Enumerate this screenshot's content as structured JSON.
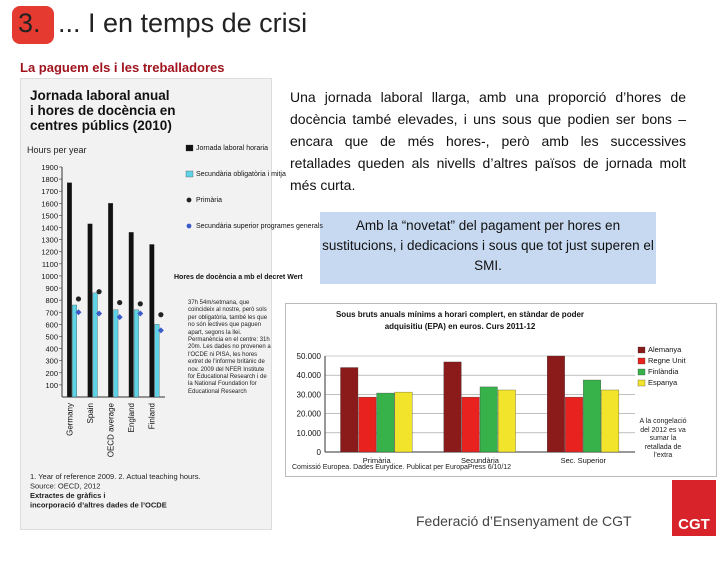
{
  "header": {
    "number": "3.",
    "title": "... I en temps de crisi",
    "subtitle": "La paguem els i les treballadores"
  },
  "paragraph": "Una jornada laboral llarga, amb una proporció d’hores de docència també elevades, i uns sous que podien ser bons –encara que de més hores-, però amb les successives retallades queden als nivells d’altres països de jornada molt més curta.",
  "highlight": "Amb la “novetat” del pagament per hores en sustitucions, i dedicacions i sous que tot just superen el SMI.",
  "footer": "Federació d’Ensenyament de CGT",
  "logo": "CGT",
  "left_chart": {
    "type": "bar",
    "title_lines": [
      "Jornada laboral anual",
      "i hores de docència en",
      "centres públics (2010)"
    ],
    "ylabel": "Hours per year",
    "categories": [
      "Germany",
      "Spain",
      "OECD average",
      "England",
      "Finland"
    ],
    "series": [
      {
        "name": "Jornada laboral horaria",
        "kind": "bar",
        "color": "#111111",
        "values": [
          1770,
          1430,
          1600,
          1360,
          1260
        ]
      },
      {
        "name": "Secundària obligatòria i mitja",
        "kind": "bar",
        "color": "#5fd3e6",
        "values": [
          760,
          860,
          720,
          720,
          600
        ]
      },
      {
        "name": "Primària",
        "kind": "marker",
        "marker": "circle",
        "color": "#222222",
        "values": [
          810,
          870,
          780,
          770,
          680
        ]
      },
      {
        "name": "Secundària superior programes generals",
        "kind": "marker",
        "marker": "diamond",
        "color": "#3b5bc8",
        "values": [
          700,
          690,
          660,
          690,
          550
        ]
      }
    ],
    "ylim": [
      0,
      1900
    ],
    "yticks": [
      100,
      200,
      300,
      400,
      500,
      600,
      700,
      800,
      900,
      1000,
      1100,
      1200,
      1300,
      1400,
      1500,
      1600,
      1700,
      1800,
      1900
    ],
    "annotation": "Hores de docència a mb el decret Wert",
    "note": "37h 54m/setmana, que coincideix al nostre, però sols per obligatòria, també les que no són lectives que paguen apart, segons la llei. Permanència en el centre: 31h 20m. Les dades no provenen a l'OCDE ni PISA, les hores extret de l'informe britànic de nov. 2009 del NFER Institute for Educational Research i de la National Foundation for Educational Research",
    "footnotes": [
      "1. Year of reference 2009.  2. Actual teaching hours.",
      "Source: OECD, 2012",
      "Extractes de gràfics i",
      "incorporació d’altres dades de l’OCDE"
    ]
  },
  "right_chart": {
    "type": "bar",
    "title_lines": [
      "Sous bruts anuals mínims a horari complert, en stàndar de poder",
      "adquisitiu (EPA) en euros. Curs 2011-12"
    ],
    "categories": [
      "Primària",
      "Secundària",
      "Sec. Superior"
    ],
    "series": [
      {
        "name": "Alemanya",
        "kind": "bar",
        "color": "#8b1a1a",
        "values": [
          44000,
          46900,
          50000
        ]
      },
      {
        "name": "Regne Unit",
        "kind": "bar",
        "color": "#e8231f",
        "values": [
          28600,
          28600,
          28600
        ]
      },
      {
        "name": "Finlàndia",
        "kind": "bar",
        "color": "#37b24a",
        "values": [
          30700,
          33900,
          37500
        ]
      },
      {
        "name": "Espanya",
        "kind": "bar",
        "color": "#f2e42a",
        "values": [
          31200,
          32300,
          32300
        ]
      }
    ],
    "ylim": [
      0,
      50000
    ],
    "yticks": [
      0,
      {
        "value": 10000,
        "label": "10.000"
      },
      {
        "value": 20000,
        "label": "20.000"
      },
      {
        "value": 30000,
        "label": "30.000"
      },
      {
        "value": 40000,
        "label": "40.000"
      },
      {
        "value": 50000,
        "label": "50.000"
      }
    ],
    "grid": true,
    "annotation": "A la congelació del 2012 es va sumar la retallada de l’extra",
    "source": "Comissió Europea. Dades Eurydice. Publicat per EuropaPress 6/10/12"
  }
}
